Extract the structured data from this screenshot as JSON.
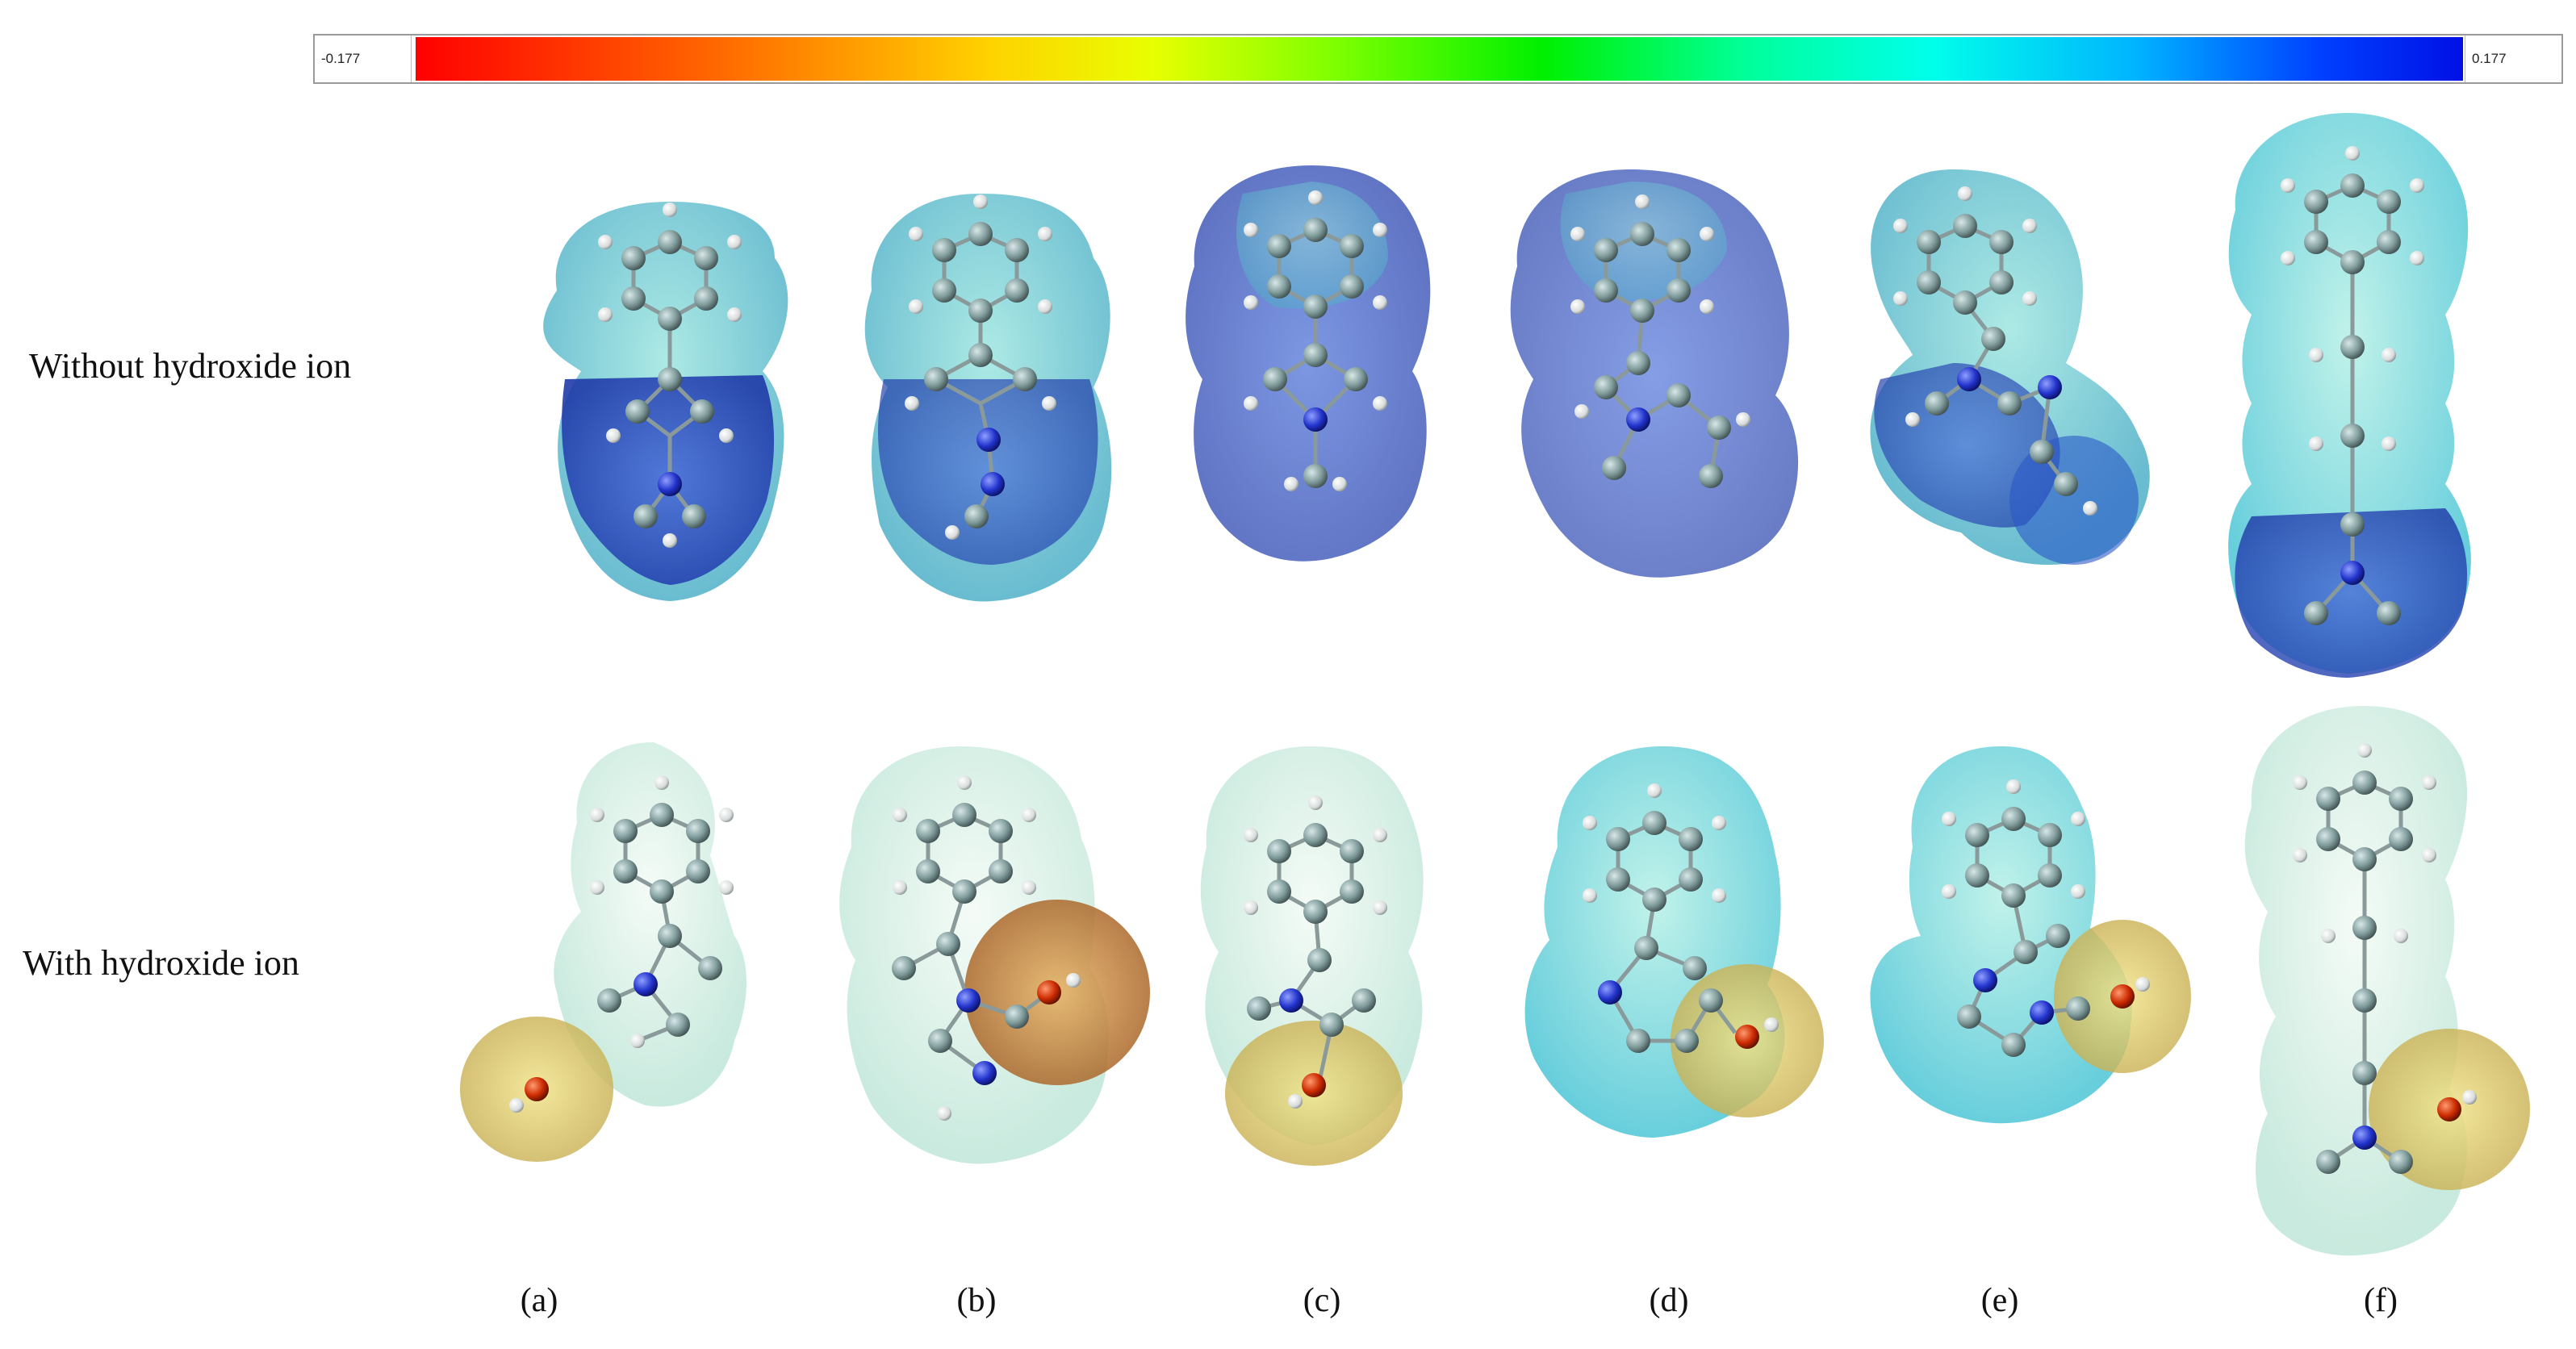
{
  "color_scale": {
    "min_label": "-0.177",
    "max_label": "0.177",
    "colors": [
      "#ff0000",
      "#ff6a00",
      "#ffd200",
      "#7dff00",
      "#00f000",
      "#00ffea",
      "#00b4ff",
      "#0010e6"
    ]
  },
  "rows": {
    "top_label": "Without hydroxide ion",
    "bottom_label": "With hydroxide ion"
  },
  "panels": [
    {
      "label": "(a)"
    },
    {
      "label": "(b)"
    },
    {
      "label": "(c)"
    },
    {
      "label": "(d)"
    },
    {
      "label": "(e)"
    },
    {
      "label": "(f)"
    }
  ],
  "atom_colors": {
    "carbon": "#7f9090",
    "hydrogen": "#e6e6e6",
    "nitrogen": "#2233cc",
    "oxygen": "#cc2a00"
  }
}
